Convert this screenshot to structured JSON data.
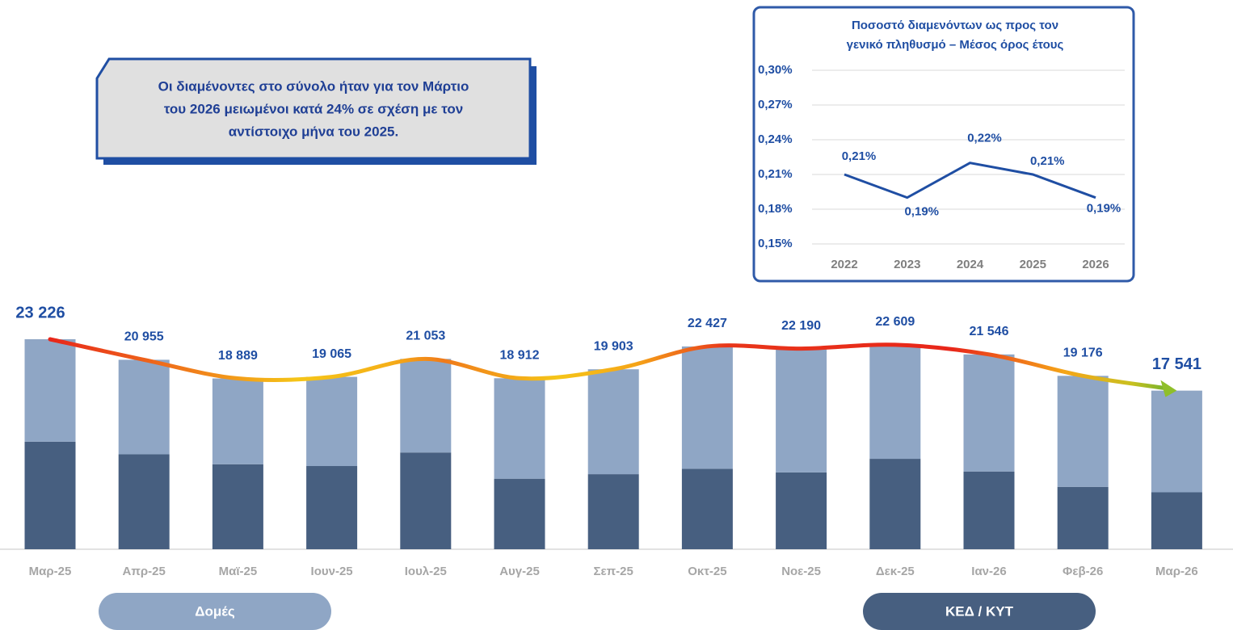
{
  "chart_data": [
    {
      "type": "bar",
      "stacked": true,
      "annotation": [
        "Οι διαμένοντες στο σύνολο ήταν για τον Μάρτιο",
        "του 2026 μειωμένοι κατά 24% σε σχέση με τον",
        "αντίστοιχο μήνα του 2025."
      ],
      "categories": [
        "Μαρ-25",
        "Απρ-25",
        "Μαϊ-25",
        "Ιουν-25",
        "Ιουλ-25",
        "Αυγ-25",
        "Σεπ-25",
        "Οκτ-25",
        "Νοε-25",
        "Δεκ-25",
        "Ιαν-26",
        "Φεβ-26",
        "Μαρ-26"
      ],
      "series": [
        {
          "name": "ΚΕΔ / ΚΥΤ",
          "color": "#475f80",
          "values": [
            11900,
            10500,
            9400,
            9200,
            10700,
            7800,
            8300,
            8900,
            8500,
            10000,
            8600,
            6900,
            6300
          ]
        },
        {
          "name": "Δομές",
          "color": "#8fa6c5",
          "values": [
            11326,
            10455,
            9489,
            9865,
            10353,
            11112,
            11603,
            13527,
            13690,
            12609,
            12946,
            12276,
            11241
          ]
        }
      ],
      "totals": [
        23226,
        20955,
        18889,
        19065,
        21053,
        18912,
        19903,
        22427,
        22190,
        22609,
        21546,
        19176,
        17541
      ],
      "total_labels": [
        "23 226",
        "20 955",
        "18 889",
        "19 065",
        "21 053",
        "18 912",
        "19 903",
        "22 427",
        "22 190",
        "22 609",
        "21 546",
        "19 176",
        "17 541"
      ]
    },
    {
      "type": "line",
      "title": [
        "Ποσοστό διαμενόντων ως προς τον",
        "γενικό πληθυσμό – Μέσος όρος έτους"
      ],
      "categories": [
        "2022",
        "2023",
        "2024",
        "2025",
        "2026"
      ],
      "values": [
        0.21,
        0.19,
        0.22,
        0.21,
        0.19
      ],
      "value_labels": [
        "0,21%",
        "0,19%",
        "0,22%",
        "0,21%",
        "0,19%"
      ],
      "color": "#1f4ea3",
      "ylim": [
        0.15,
        0.3
      ],
      "yticks": [
        {
          "value": 0.15,
          "label": "0,15%"
        },
        {
          "value": 0.18,
          "label": "0,18%"
        },
        {
          "value": 0.21,
          "label": "0,21%"
        },
        {
          "value": 0.24,
          "label": "0,24%"
        },
        {
          "value": 0.27,
          "label": "0,27%"
        },
        {
          "value": 0.3,
          "label": "0,30%"
        }
      ],
      "grid": true
    }
  ]
}
